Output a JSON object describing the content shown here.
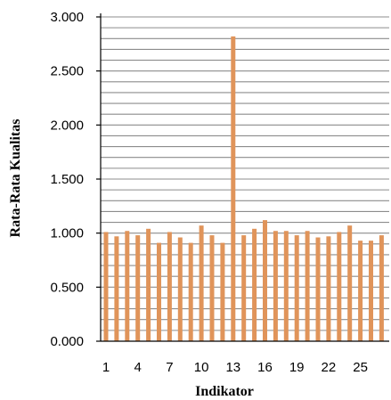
{
  "chart_data": {
    "type": "bar",
    "xlabel": "Indikator",
    "ylabel": "Rata-Rata Kualitas",
    "ylim": [
      0,
      3.0
    ],
    "y_ticks": [
      "0.000",
      "0.500",
      "1.000",
      "1.500",
      "2.000",
      "2.500",
      "3.000"
    ],
    "y_tick_values": [
      0,
      0.5,
      1.0,
      1.5,
      2.0,
      2.5,
      3.0
    ],
    "minor_grid_step": 0.1,
    "x_tick_labels": [
      "1",
      "4",
      "7",
      "10",
      "13",
      "16",
      "19",
      "22",
      "25"
    ],
    "x_tick_categories": [
      1,
      4,
      7,
      10,
      13,
      16,
      19,
      22,
      25
    ],
    "grid": true,
    "bar_color": "#E0945A",
    "grid_color": "#8c8c8c",
    "categories": [
      1,
      2,
      3,
      4,
      5,
      6,
      7,
      8,
      9,
      10,
      11,
      12,
      13,
      14,
      15,
      16,
      17,
      18,
      19,
      20,
      21,
      22,
      23,
      24,
      25,
      26,
      27
    ],
    "values": [
      1.01,
      0.97,
      1.02,
      0.98,
      1.04,
      0.91,
      1.01,
      0.96,
      0.91,
      1.07,
      0.98,
      0.91,
      2.82,
      0.98,
      1.04,
      1.12,
      1.02,
      1.02,
      0.98,
      1.02,
      0.96,
      0.97,
      1.01,
      1.07,
      0.93,
      0.93,
      0.98
    ]
  }
}
